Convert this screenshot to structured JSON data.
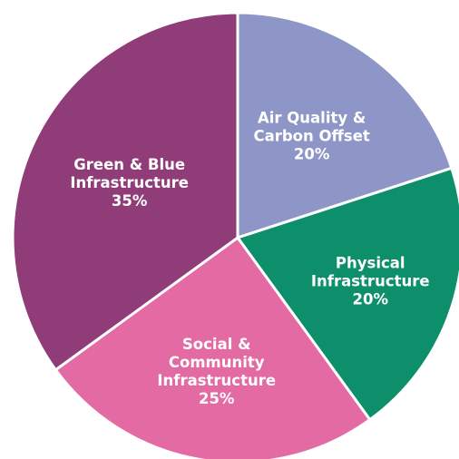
{
  "chart_data": {
    "type": "pie",
    "title": "",
    "slices": [
      {
        "label_lines": [
          "Air Quality &",
          "Carbon Offset"
        ],
        "value_label": "20%",
        "value": 20,
        "color": "#8e96c7"
      },
      {
        "label_lines": [
          "Physical",
          "Infrastructure"
        ],
        "value_label": "20%",
        "value": 20,
        "color": "#0e8f6b"
      },
      {
        "label_lines": [
          "Social &",
          "Community",
          "Infrastructure"
        ],
        "value_label": "25%",
        "value": 25,
        "color": "#e36aa3"
      },
      {
        "label_lines": [
          "Green & Blue",
          "Infrastructure"
        ],
        "value_label": "35%",
        "value": 35,
        "color": "#8f3c79"
      }
    ],
    "start_angle": "12 o'clock",
    "direction": "clockwise",
    "legend": "none",
    "labels": "inside slices"
  }
}
